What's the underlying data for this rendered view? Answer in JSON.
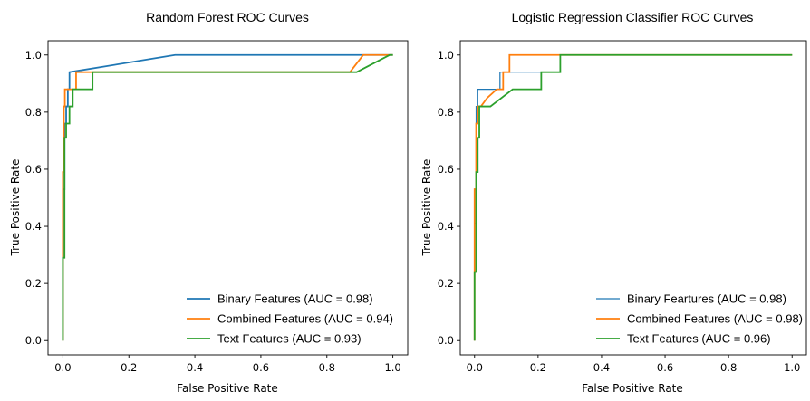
{
  "chart_data": [
    {
      "type": "line",
      "title": "Random Forest ROC Curves",
      "xlabel": "False Positive Rate",
      "ylabel": "True Positive Rate",
      "xlim": [
        -0.045,
        1.045
      ],
      "ylim": [
        -0.05,
        1.05
      ],
      "xticks": [
        "0.0",
        "0.2",
        "0.4",
        "0.6",
        "0.8",
        "1.0"
      ],
      "yticks": [
        "0.0",
        "0.2",
        "0.4",
        "0.6",
        "0.8",
        "1.0"
      ],
      "grid": false,
      "legend_position": "lower-right",
      "series": [
        {
          "name": "Binary Features (AUC = 0.98)",
          "color": "#1f77b4",
          "x": [
            0,
            0,
            0.005,
            0.005,
            0.01,
            0.01,
            0.015,
            0.015,
            0.02,
            0.02,
            0.34,
            1.0
          ],
          "y": [
            0,
            0.53,
            0.53,
            0.76,
            0.76,
            0.82,
            0.82,
            0.88,
            0.88,
            0.94,
            1.0,
            1.0
          ]
        },
        {
          "name": "Combined Features (AUC = 0.94)",
          "color": "#ff7f0e",
          "x": [
            0,
            0,
            0.003,
            0.003,
            0.006,
            0.006,
            0.03,
            0.04,
            0.04,
            0.05,
            0.05,
            0.87,
            0.91,
            0.91,
            1.0
          ],
          "y": [
            0,
            0.59,
            0.59,
            0.82,
            0.82,
            0.88,
            0.88,
            0.88,
            0.94,
            0.94,
            0.94,
            0.94,
            1.0,
            1.0,
            1.0
          ]
        },
        {
          "name": "Text Features (AUC = 0.93)",
          "color": "#2ca02c",
          "x": [
            0,
            0,
            0.005,
            0.005,
            0.01,
            0.01,
            0.02,
            0.02,
            0.03,
            0.03,
            0.09,
            0.09,
            0.89,
            0.99,
            1.0
          ],
          "y": [
            0,
            0.29,
            0.29,
            0.71,
            0.71,
            0.76,
            0.76,
            0.82,
            0.82,
            0.88,
            0.88,
            0.94,
            0.94,
            1.0,
            1.0
          ]
        }
      ]
    },
    {
      "type": "line",
      "title": "Logistic Regression Classifier ROC Curves",
      "xlabel": "False Positive Rate",
      "ylabel": "True Positive Rate",
      "xlim": [
        -0.045,
        1.045
      ],
      "ylim": [
        -0.05,
        1.05
      ],
      "xticks": [
        "0.0",
        "0.2",
        "0.4",
        "0.6",
        "0.8",
        "1.0"
      ],
      "yticks": [
        "0.0",
        "0.2",
        "0.4",
        "0.6",
        "0.8",
        "1.0"
      ],
      "grid": false,
      "legend_position": "lower-right",
      "series": [
        {
          "name": "Binary Feartures (AUC = 0.98)",
          "color": "#1f77b4",
          "x": [
            0,
            0,
            0.005,
            0.005,
            0.01,
            0.01,
            0.03,
            0.08,
            0.08,
            0.27,
            0.27,
            1.0
          ],
          "y": [
            0,
            0.41,
            0.41,
            0.82,
            0.82,
            0.88,
            0.88,
            0.88,
            0.94,
            0.94,
            1.0,
            1.0
          ]
        },
        {
          "name": "Combined Features (AUC = 0.98)",
          "color": "#ff7f0e",
          "x": [
            0,
            0,
            0.005,
            0.005,
            0.01,
            0.01,
            0.02,
            0.02,
            0.04,
            0.07,
            0.09,
            0.09,
            0.11,
            0.11,
            0.3,
            1.0
          ],
          "y": [
            0,
            0.53,
            0.53,
            0.76,
            0.76,
            0.82,
            0.82,
            0.82,
            0.85,
            0.88,
            0.88,
            0.94,
            0.94,
            1.0,
            1.0,
            1.0
          ]
        },
        {
          "name": "Text Features (AUC = 0.96)",
          "color": "#2ca02c",
          "x": [
            0,
            0,
            0.005,
            0.005,
            0.01,
            0.01,
            0.015,
            0.015,
            0.03,
            0.05,
            0.12,
            0.16,
            0.16,
            0.21,
            0.21,
            0.27,
            0.27,
            0.33,
            1.0
          ],
          "y": [
            0,
            0.24,
            0.24,
            0.59,
            0.59,
            0.71,
            0.71,
            0.82,
            0.82,
            0.82,
            0.88,
            0.88,
            0.88,
            0.88,
            0.94,
            0.94,
            1.0,
            1.0,
            1.0
          ]
        }
      ]
    }
  ]
}
